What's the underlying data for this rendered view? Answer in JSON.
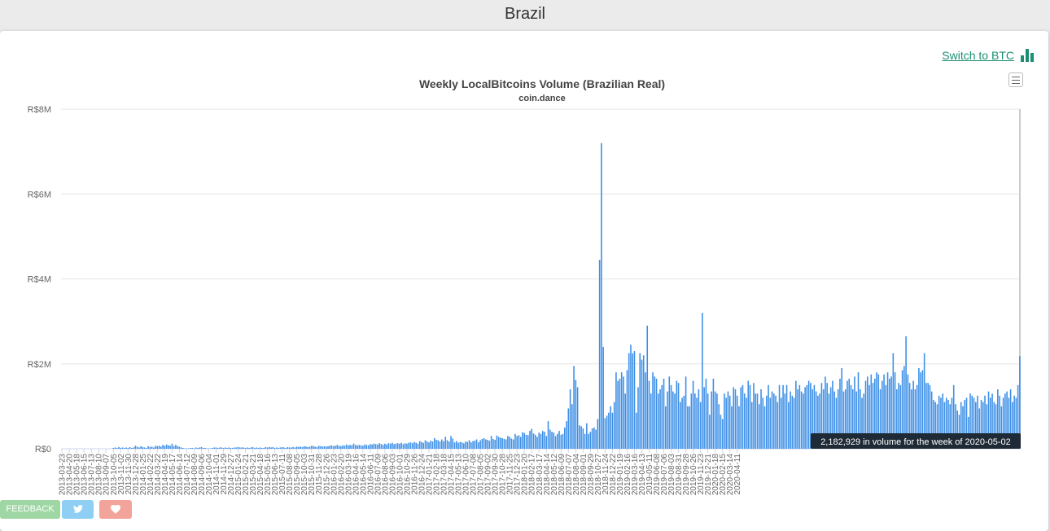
{
  "page": {
    "title": "Brazil"
  },
  "switch_link": {
    "label": "Switch to BTC"
  },
  "icons": {
    "switch": "bar-chart-icon",
    "menu": "hamburger-menu-icon",
    "twitter": "twitter-icon",
    "heart": "heart-icon"
  },
  "colors": {
    "bar": "#3d8fe6",
    "link": "#1a8f72",
    "tooltip_bg": "#1e2a36"
  },
  "buttons": {
    "feedback": "FEEDBACK"
  },
  "tooltip": {
    "text": "2,182,929 in volume for the week of 2020-05-02"
  },
  "chart_data": {
    "type": "bar",
    "title": "Weekly LocalBitcoins Volume (Brazilian Real)",
    "subtitle": "coin.dance",
    "y_tick_labels": [
      "R$0",
      "R$2M",
      "R$4M",
      "R$6M",
      "R$8M"
    ],
    "y_ticks": [
      0,
      2000000,
      4000000,
      6000000,
      8000000
    ],
    "ylim": [
      0,
      8000000
    ],
    "x_start": "2013-03-23",
    "x_end": "2020-05-02",
    "x_tick_step_weeks": 4,
    "x_tick_labels": [
      "2013-03-23",
      "2013-04-20",
      "2013-05-18",
      "2013-06-15",
      "2013-07-13",
      "2013-08-10",
      "2013-09-07",
      "2013-10-05",
      "2013-11-02",
      "2013-11-30",
      "2013-12-28",
      "2014-01-25",
      "2014-02-22",
      "2014-03-22",
      "2014-04-19",
      "2014-05-17",
      "2014-06-14",
      "2014-07-12",
      "2014-08-09",
      "2014-09-06",
      "2014-10-04",
      "2014-11-01",
      "2014-11-29",
      "2014-12-27",
      "2015-01-24",
      "2015-02-21",
      "2015-03-21",
      "2015-04-18",
      "2015-05-16",
      "2015-06-13",
      "2015-07-11",
      "2015-08-08",
      "2015-09-05",
      "2015-10-03",
      "2015-10-31",
      "2015-11-28",
      "2015-12-26",
      "2016-01-23",
      "2016-02-20",
      "2016-03-19",
      "2016-04-16",
      "2016-05-14",
      "2016-06-11",
      "2016-07-09",
      "2016-08-06",
      "2016-09-03",
      "2016-10-01",
      "2016-10-29",
      "2016-11-26",
      "2016-12-24",
      "2017-01-21",
      "2017-02-18",
      "2017-03-18",
      "2017-04-15",
      "2017-05-13",
      "2017-06-10",
      "2017-07-08",
      "2017-08-05",
      "2017-09-02",
      "2017-09-30",
      "2017-10-28",
      "2017-11-25",
      "2017-12-23",
      "2018-01-20",
      "2018-02-17",
      "2018-03-17",
      "2018-04-14",
      "2018-05-12",
      "2018-06-09",
      "2018-07-07",
      "2018-08-04",
      "2018-09-01",
      "2018-09-29",
      "2018-10-27",
      "2018-11-24",
      "2018-12-22",
      "2019-01-19",
      "2019-02-16",
      "2019-03-16",
      "2019-04-13",
      "2019-05-11",
      "2019-06-08",
      "2019-07-06",
      "2019-08-03",
      "2019-08-31",
      "2019-09-28",
      "2019-10-26",
      "2019-11-23",
      "2019-12-21",
      "2020-01-18",
      "2020-02-15",
      "2020-03-14",
      "2020-04-11"
    ],
    "values": [
      0,
      0,
      0,
      0,
      0,
      0,
      0,
      0,
      0,
      0,
      0,
      0,
      0,
      0,
      0,
      0,
      0,
      0,
      0,
      0,
      0,
      0,
      0,
      0,
      0,
      0,
      0,
      0,
      20000,
      30000,
      20000,
      40000,
      20000,
      30000,
      20000,
      30000,
      20000,
      40000,
      20000,
      30000,
      70000,
      50000,
      30000,
      60000,
      40000,
      30000,
      20000,
      60000,
      40000,
      50000,
      30000,
      70000,
      60000,
      70000,
      50000,
      90000,
      70000,
      100000,
      80000,
      70000,
      120000,
      60000,
      90000,
      60000,
      50000,
      30000,
      20000,
      10000,
      10000,
      10000,
      20000,
      20000,
      10000,
      30000,
      20000,
      30000,
      40000,
      20000,
      20000,
      10000,
      10000,
      10000,
      20000,
      30000,
      30000,
      20000,
      30000,
      30000,
      20000,
      30000,
      20000,
      30000,
      20000,
      20000,
      30000,
      30000,
      40000,
      30000,
      30000,
      30000,
      20000,
      30000,
      20000,
      30000,
      40000,
      20000,
      30000,
      20000,
      30000,
      20000,
      20000,
      40000,
      30000,
      40000,
      30000,
      40000,
      20000,
      30000,
      20000,
      30000,
      40000,
      30000,
      20000,
      40000,
      30000,
      30000,
      40000,
      30000,
      50000,
      40000,
      50000,
      40000,
      60000,
      50000,
      40000,
      50000,
      70000,
      60000,
      50000,
      40000,
      70000,
      60000,
      50000,
      60000,
      50000,
      60000,
      70000,
      80000,
      60000,
      70000,
      90000,
      70000,
      60000,
      80000,
      70000,
      100000,
      80000,
      90000,
      80000,
      120000,
      90000,
      80000,
      90000,
      80000,
      70000,
      100000,
      90000,
      80000,
      110000,
      100000,
      120000,
      110000,
      100000,
      130000,
      110000,
      90000,
      120000,
      100000,
      130000,
      120000,
      140000,
      110000,
      120000,
      130000,
      120000,
      140000,
      110000,
      130000,
      120000,
      140000,
      150000,
      130000,
      160000,
      140000,
      120000,
      180000,
      160000,
      140000,
      200000,
      170000,
      150000,
      190000,
      170000,
      250000,
      210000,
      200000,
      170000,
      220000,
      180000,
      280000,
      200000,
      170000,
      300000,
      240000,
      150000,
      180000,
      140000,
      160000,
      150000,
      130000,
      170000,
      160000,
      200000,
      150000,
      180000,
      190000,
      220000,
      150000,
      200000,
      230000,
      250000,
      220000,
      210000,
      190000,
      300000,
      230000,
      210000,
      310000,
      280000,
      260000,
      250000,
      230000,
      220000,
      300000,
      280000,
      240000,
      220000,
      350000,
      300000,
      320000,
      280000,
      390000,
      370000,
      330000,
      320000,
      420000,
      470000,
      360000,
      330000,
      280000,
      380000,
      350000,
      420000,
      400000,
      300000,
      650000,
      450000,
      400000,
      380000,
      300000,
      350000,
      420000,
      330000,
      350000,
      500000,
      650000,
      950000,
      1400000,
      1050000,
      1950000,
      1620000,
      1450000,
      550000,
      530000,
      480000,
      350000,
      600000,
      350000,
      400000,
      480000,
      500000,
      450000,
      700000,
      4450000,
      7200000,
      2400000,
      720000,
      780000,
      850000,
      1000000,
      850000,
      1100000,
      1800000,
      1600000,
      1650000,
      1800000,
      1700000,
      1300000,
      1850000,
      2250000,
      2450000,
      2250000,
      2300000,
      850000,
      1450000,
      2250000,
      2100000,
      2200000,
      1800000,
      2900000,
      1600000,
      1300000,
      1800000,
      1700000,
      1650000,
      1300000,
      1400000,
      1500000,
      1650000,
      1000000,
      1350000,
      1700000,
      1500000,
      1350000,
      1300000,
      1600000,
      1550000,
      1100000,
      1200000,
      1250000,
      1700000,
      1000000,
      1000000,
      1300000,
      1600000,
      1300000,
      1200000,
      1400000,
      1100000,
      3200000,
      1450000,
      1650000,
      1300000,
      800000,
      1350000,
      1650000,
      1350000,
      1300000,
      1050000,
      800000,
      700000,
      1300000,
      1200000,
      1350000,
      1250000,
      1000000,
      1450000,
      1400000,
      1250000,
      1000000,
      1450000,
      1500000,
      1300000,
      1200000,
      1600000,
      1500000,
      1100000,
      1550000,
      1300000,
      1300000,
      1050000,
      1400000,
      1200000,
      1000000,
      1250000,
      1500000,
      1200000,
      1350000,
      1300000,
      1250000,
      1100000,
      1500000,
      1200000,
      1500000,
      1300000,
      1500000,
      1100000,
      1350000,
      1250000,
      1200000,
      1600000,
      1400000,
      1500000,
      1350000,
      1300000,
      1450000,
      1500000,
      1600000,
      1550000,
      1400000,
      1500000,
      1350000,
      1250000,
      1300000,
      1550000,
      1400000,
      1700000,
      1550000,
      1300000,
      1450000,
      1600000,
      1350000,
      1200000,
      1400000,
      1650000,
      1900000,
      1350000,
      1400000,
      1600000,
      1650000,
      1500000,
      1400000,
      1700000,
      1350000,
      1800000,
      1400000,
      1200000,
      1300000,
      1600000,
      1700000,
      1500000,
      1750000,
      1550000,
      1650000,
      1800000,
      1750000,
      1400000,
      1600000,
      1750000,
      1500000,
      1800000,
      1650000,
      1700000,
      2250000,
      1800000,
      1400000,
      1550000,
      1500000,
      1850000,
      1950000,
      2650000,
      1750000,
      1550000,
      1400000,
      1600000,
      1400000,
      1500000,
      1900000,
      1800000,
      1850000,
      2250000,
      1550000,
      1550000,
      1500000,
      1350000,
      1150000,
      1100000,
      1050000,
      1250000,
      1200000,
      1300000,
      1100000,
      1200000,
      1150000,
      1050000,
      1200000,
      1500000,
      1050000,
      900000,
      800000,
      1100000,
      1000000,
      1150000,
      1200000,
      750000,
      1300000,
      1250000,
      1200000,
      1100000,
      1250000,
      950000,
      1150000,
      1100000,
      1250000,
      1050000,
      1350000,
      1200000,
      1300000,
      1100000,
      1050000,
      1400000,
      1250000,
      1000000,
      1200000,
      1300000,
      1350000,
      1200000,
      1400000,
      1100000,
      1250000,
      1200000,
      1500000,
      2182929
    ]
  }
}
